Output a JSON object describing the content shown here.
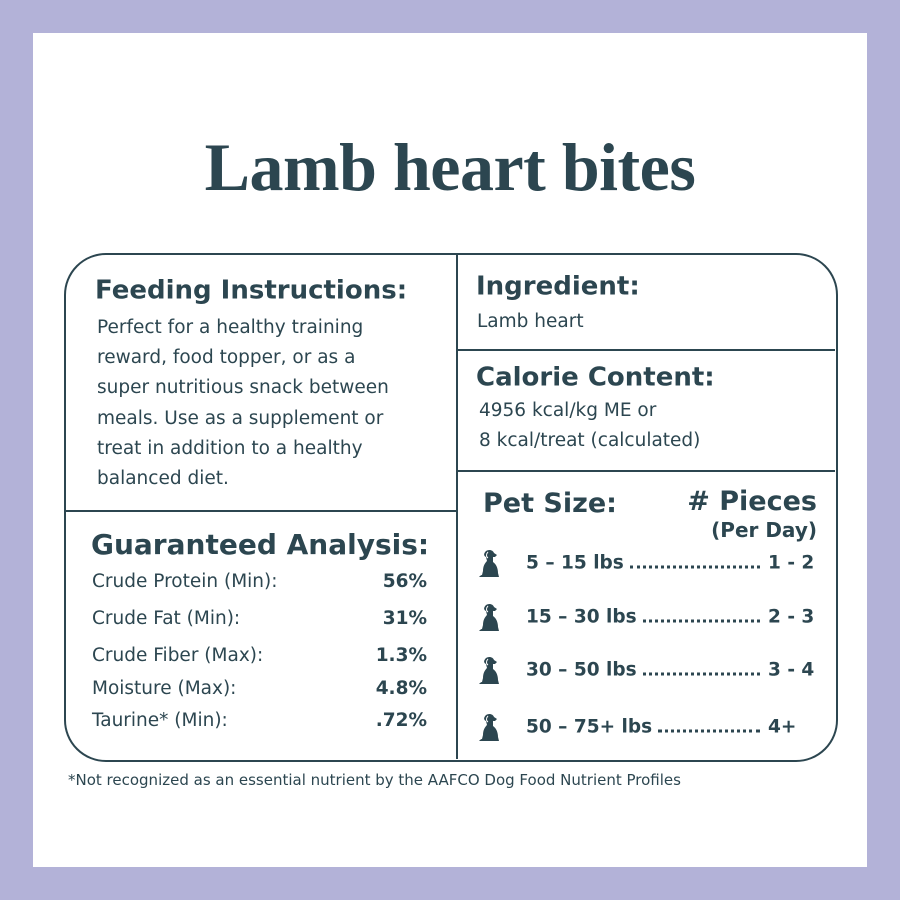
{
  "title": "Lamb heart bites",
  "feeding_instructions": {
    "heading": "Feeding Instructions:",
    "lines": [
      "Perfect for a healthy training",
      "reward, food topper, or as a",
      "super nutritious snack between",
      "meals. Use as a supplement or",
      "treat in addition to a healthy",
      "balanced diet."
    ]
  },
  "guaranteed_analysis": {
    "heading": "Guaranteed Analysis:",
    "rows": [
      [
        "Crude Protein (Min):",
        "56%"
      ],
      [
        "Crude Fat (Min):",
        "31%"
      ],
      [
        "Crude Fiber (Max):",
        "1.3%"
      ],
      [
        "Moisture (Max):",
        "4.8%"
      ],
      [
        "Taurine* (Min):",
        ".72%"
      ]
    ]
  },
  "ingredient": {
    "heading": "Ingredient:",
    "text": "Lamb heart"
  },
  "calorie_content": {
    "heading": "Calorie Content:",
    "lines": [
      "4956 kcal/kg ME or",
      "8 kcal/treat (calculated)"
    ]
  },
  "feeding_chart": {
    "size_heading": "Pet Size:",
    "pieces_heading": "# Pieces",
    "pieces_subheading": "(Per Day)",
    "rows": [
      [
        "5 – 15 lbs",
        "1 - 2"
      ],
      [
        "15 – 30 lbs",
        "2 - 3"
      ],
      [
        "30 – 50 lbs",
        "3 - 4"
      ],
      [
        "50 – 75+ lbs",
        "4+"
      ]
    ]
  },
  "footnote": "*Not recognized as an essential nutrient by the AAFCO Dog Food Nutrient Profiles"
}
